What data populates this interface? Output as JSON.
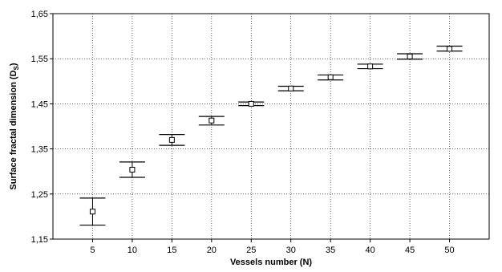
{
  "chart_data": {
    "type": "scatter",
    "title": "",
    "xlabel": "Vessels number (N)",
    "ylabel_main": "Surface fractal dimension (D",
    "ylabel_sub": "S",
    "ylabel_close": ")",
    "xlim": [
      0,
      55
    ],
    "ylim": [
      1.15,
      1.65
    ],
    "grid": "dashed",
    "x_ticks": [
      5,
      10,
      15,
      20,
      25,
      30,
      35,
      40,
      45,
      50
    ],
    "x_tick_labels": [
      "5",
      "10",
      "15",
      "20",
      "25",
      "30",
      "35",
      "40",
      "45",
      "50"
    ],
    "y_ticks": [
      1.15,
      1.25,
      1.35,
      1.45,
      1.55,
      1.65
    ],
    "y_tick_labels": [
      "1,15",
      "1,25",
      "1,35",
      "1,45",
      "1,55",
      "1,65"
    ],
    "points": [
      {
        "x": 5,
        "y": 1.211,
        "lower": 1.181,
        "upper": 1.241
      },
      {
        "x": 10,
        "y": 1.304,
        "lower": 1.287,
        "upper": 1.321
      },
      {
        "x": 15,
        "y": 1.37,
        "lower": 1.358,
        "upper": 1.382
      },
      {
        "x": 20,
        "y": 1.413,
        "lower": 1.403,
        "upper": 1.422
      },
      {
        "x": 25,
        "y": 1.45,
        "lower": 1.446,
        "upper": 1.454
      },
      {
        "x": 30,
        "y": 1.484,
        "lower": 1.479,
        "upper": 1.489
      },
      {
        "x": 35,
        "y": 1.509,
        "lower": 1.503,
        "upper": 1.514
      },
      {
        "x": 40,
        "y": 1.533,
        "lower": 1.528,
        "upper": 1.538
      },
      {
        "x": 45,
        "y": 1.555,
        "lower": 1.549,
        "upper": 1.561
      },
      {
        "x": 50,
        "y": 1.572,
        "lower": 1.567,
        "upper": 1.578
      }
    ]
  }
}
